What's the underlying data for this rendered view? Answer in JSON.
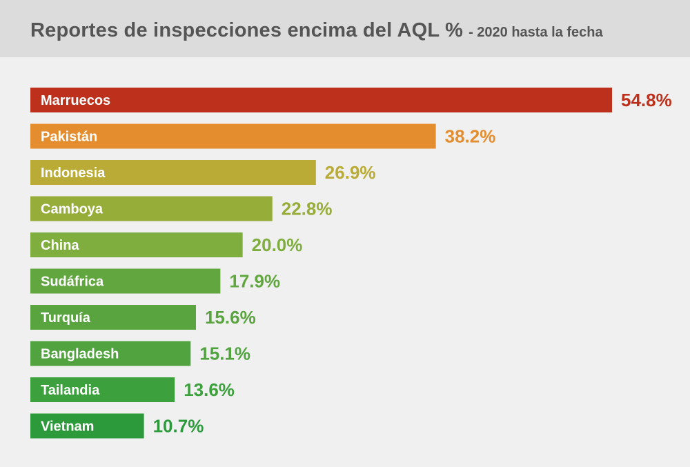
{
  "header": {
    "title": "Reportes de inspecciones encima del AQL %",
    "subtitle": "- 2020 hasta la fecha"
  },
  "chart_data": {
    "type": "bar",
    "orientation": "horizontal",
    "title": "Reportes de inspecciones encima del AQL %",
    "subtitle": "- 2020 hasta la fecha",
    "categories": [
      "Marruecos",
      "Pakistán",
      "Indonesia",
      "Camboya",
      "China",
      "Sudáfrica",
      "Turquía",
      "Bangladesh",
      "Tailandia",
      "Vietnam"
    ],
    "values": [
      54.8,
      38.2,
      26.9,
      22.8,
      20.0,
      17.9,
      15.6,
      15.1,
      13.6,
      10.7
    ],
    "value_labels": [
      "54.8%",
      "38.2%",
      "26.9%",
      "22.8%",
      "20.0%",
      "17.9%",
      "15.6%",
      "15.1%",
      "13.6%",
      "10.7%"
    ],
    "colors": [
      "#bd311c",
      "#e38d2e",
      "#b9ab36",
      "#97ad3a",
      "#7fae3f",
      "#62a63f",
      "#59a43f",
      "#51a33f",
      "#3ca13d",
      "#2c9a3a"
    ],
    "xlim": [
      0,
      54.8
    ],
    "grid": false,
    "legend": "none"
  }
}
